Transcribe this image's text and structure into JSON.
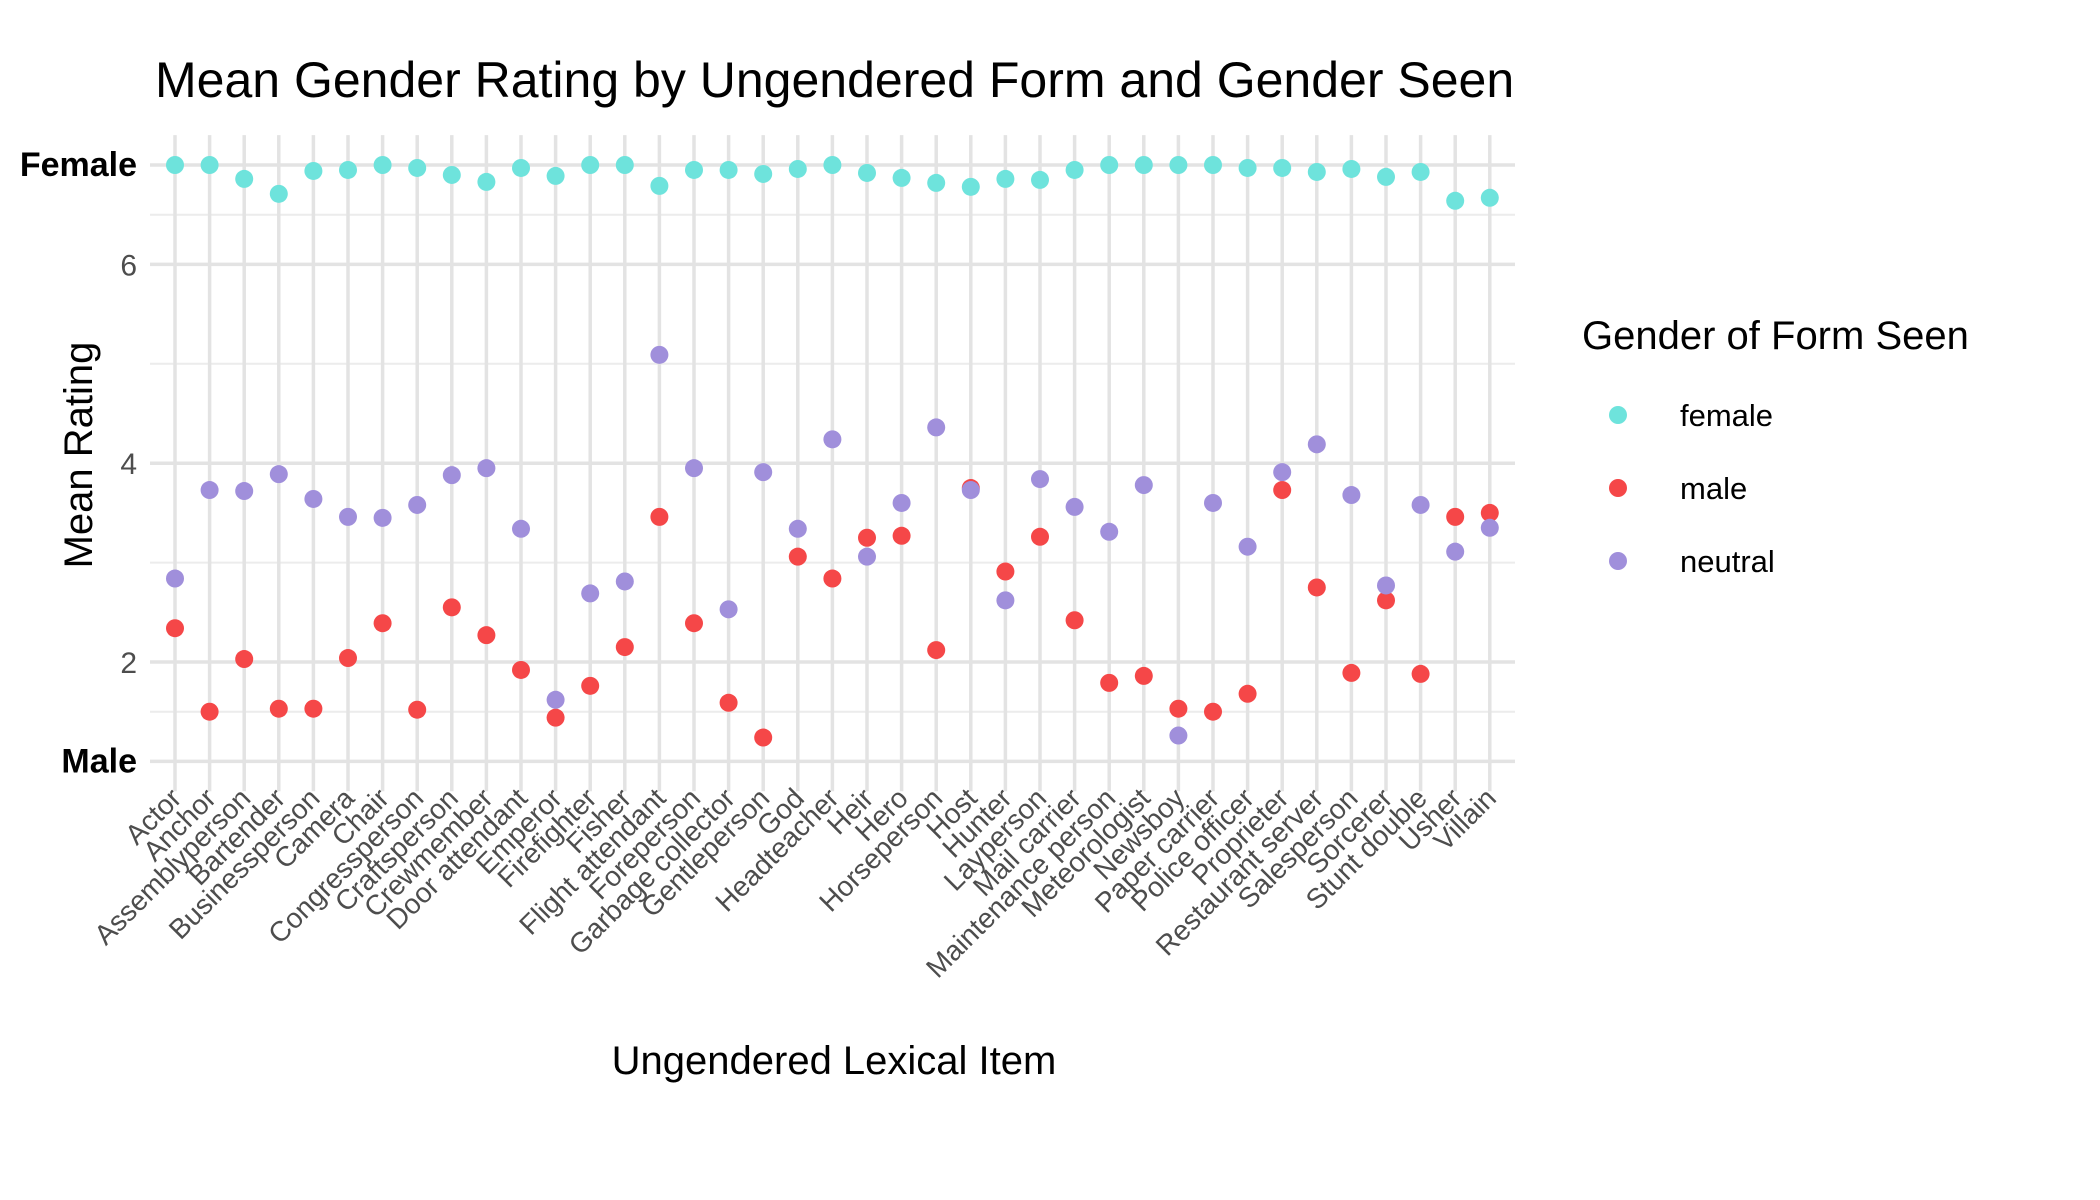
{
  "chart_data": {
    "type": "scatter",
    "title": "Mean Gender Rating by Ungendered Form and Gender Seen",
    "xlabel": "Ungendered Lexical Item",
    "ylabel": "Mean Rating",
    "ylim": [
      0.7,
      7.3
    ],
    "y_ticks": [
      {
        "value": 1,
        "label": "Male",
        "bold": true
      },
      {
        "value": 2,
        "label": "2",
        "bold": false
      },
      {
        "value": 4,
        "label": "4",
        "bold": false
      },
      {
        "value": 6,
        "label": "6",
        "bold": false
      },
      {
        "value": 7,
        "label": "Female",
        "bold": true
      }
    ],
    "grid": true,
    "legend": {
      "title": "Gender of Form Seen",
      "position": "right"
    },
    "categories": [
      "Actor",
      "Anchor",
      "Assemblyperson",
      "Bartender",
      "Businessperson",
      "Camera",
      "Chair",
      "Congressperson",
      "Craftsperson",
      "Crewmember",
      "Door attendant",
      "Emperor",
      "Firefighter",
      "Fisher",
      "Flight attendant",
      "Foreperson",
      "Garbage collector",
      "Gentleperson",
      "God",
      "Headteacher",
      "Heir",
      "Hero",
      "Horseperson",
      "Host",
      "Hunter",
      "Layperson",
      "Mail carrier",
      "Maintenance person",
      "Meteorologist",
      "Newsboy",
      "Paper carrier",
      "Police officer",
      "Proprieter",
      "Restaurant server",
      "Salesperson",
      "Sorcerer",
      "Stunt double",
      "Usher",
      "Villain"
    ],
    "series": [
      {
        "name": "female",
        "color": "#6ee3dc",
        "values": [
          7.0,
          7.0,
          6.86,
          6.71,
          6.94,
          6.95,
          7.0,
          6.97,
          6.9,
          6.83,
          6.97,
          6.89,
          7.0,
          7.0,
          6.79,
          6.95,
          6.95,
          6.91,
          6.96,
          7.0,
          6.92,
          6.87,
          6.82,
          6.78,
          6.86,
          6.85,
          6.95,
          7.0,
          7.0,
          7.0,
          7.0,
          6.97,
          6.97,
          6.93,
          6.96,
          6.88,
          6.93,
          6.64,
          6.67
        ]
      },
      {
        "name": "male",
        "color": "#f54748",
        "values": [
          2.34,
          1.5,
          2.03,
          1.53,
          1.53,
          2.04,
          2.39,
          1.52,
          2.55,
          2.27,
          1.92,
          1.44,
          1.76,
          2.15,
          3.46,
          2.39,
          1.59,
          1.24,
          3.06,
          2.84,
          3.25,
          3.27,
          2.12,
          3.75,
          2.91,
          3.26,
          2.42,
          1.79,
          1.86,
          1.53,
          1.5,
          1.68,
          3.73,
          2.75,
          1.89,
          2.62,
          1.88,
          3.46,
          3.5
        ]
      },
      {
        "name": "neutral",
        "color": "#a08fdb",
        "values": [
          2.84,
          3.73,
          3.72,
          3.89,
          3.64,
          3.46,
          3.45,
          3.58,
          3.88,
          3.95,
          3.34,
          1.62,
          2.69,
          2.81,
          5.09,
          3.95,
          2.53,
          3.91,
          3.34,
          4.24,
          3.06,
          3.6,
          4.36,
          3.73,
          2.62,
          3.84,
          3.56,
          3.31,
          3.78,
          1.26,
          3.6,
          3.16,
          3.91,
          4.19,
          3.68,
          2.77,
          3.58,
          3.11,
          3.35
        ]
      }
    ]
  }
}
